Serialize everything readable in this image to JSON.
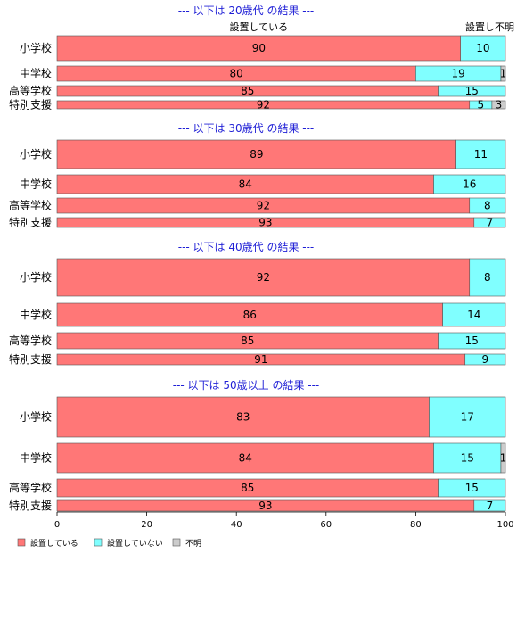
{
  "chart_data": {
    "type": "bar",
    "orientation": "horizontal",
    "stacked": true,
    "xlim": [
      0,
      100
    ],
    "x_ticks": [
      0,
      20,
      40,
      60,
      80,
      100
    ],
    "series_names": [
      "設置している",
      "設置していない",
      "不明"
    ],
    "colors": [
      "#ff7777",
      "#80ffff",
      "#cccccc"
    ],
    "column_headers": [
      "設置している",
      "設置し不明"
    ],
    "panels": [
      {
        "title": "--- 以下は 20歳代 の結果 ---",
        "rows": [
          {
            "category": "小学校",
            "values": [
              90,
              10,
              0
            ],
            "labels": [
              "90",
              "10",
              ""
            ]
          },
          {
            "category": "中学校",
            "values": [
              80,
              19,
              1
            ],
            "labels": [
              "80",
              "19",
              "1"
            ]
          },
          {
            "category": "高等学校",
            "values": [
              85,
              15,
              0
            ],
            "labels": [
              "85",
              "15",
              ""
            ]
          },
          {
            "category": "特別支援",
            "values": [
              92,
              5,
              3
            ],
            "labels": [
              "92",
              "5",
              "3"
            ]
          }
        ]
      },
      {
        "title": "--- 以下は 30歳代 の結果 ---",
        "rows": [
          {
            "category": "小学校",
            "values": [
              89,
              11,
              0
            ],
            "labels": [
              "89",
              "11",
              ""
            ]
          },
          {
            "category": "中学校",
            "values": [
              84,
              16,
              0
            ],
            "labels": [
              "84",
              "16",
              ""
            ]
          },
          {
            "category": "高等学校",
            "values": [
              92,
              8,
              0
            ],
            "labels": [
              "92",
              "8",
              ""
            ]
          },
          {
            "category": "特別支援",
            "values": [
              93,
              7,
              0
            ],
            "labels": [
              "93",
              "7",
              ""
            ]
          }
        ]
      },
      {
        "title": "--- 以下は 40歳代 の結果 ---",
        "rows": [
          {
            "category": "小学校",
            "values": [
              92,
              8,
              0
            ],
            "labels": [
              "92",
              "8",
              ""
            ]
          },
          {
            "category": "中学校",
            "values": [
              86,
              14,
              0
            ],
            "labels": [
              "86",
              "14",
              ""
            ]
          },
          {
            "category": "高等学校",
            "values": [
              85,
              15,
              0
            ],
            "labels": [
              "85",
              "15",
              ""
            ]
          },
          {
            "category": "特別支援",
            "values": [
              91,
              9,
              0
            ],
            "labels": [
              "91",
              "9",
              ""
            ]
          }
        ]
      },
      {
        "title": "--- 以下は 50歳以上 の結果 ---",
        "rows": [
          {
            "category": "小学校",
            "values": [
              83,
              17,
              0
            ],
            "labels": [
              "83",
              "17",
              ""
            ]
          },
          {
            "category": "中学校",
            "values": [
              84,
              15,
              1
            ],
            "labels": [
              "84",
              "15",
              "1"
            ]
          },
          {
            "category": "高等学校",
            "values": [
              85,
              15,
              0
            ],
            "labels": [
              "85",
              "15",
              ""
            ]
          },
          {
            "category": "特別支援",
            "values": [
              93,
              7,
              0
            ],
            "labels": [
              "93",
              "7",
              ""
            ]
          }
        ]
      }
    ],
    "legend": {
      "position": "bottom-left",
      "entries": [
        "設置している",
        "設置していない",
        "不明"
      ]
    }
  }
}
